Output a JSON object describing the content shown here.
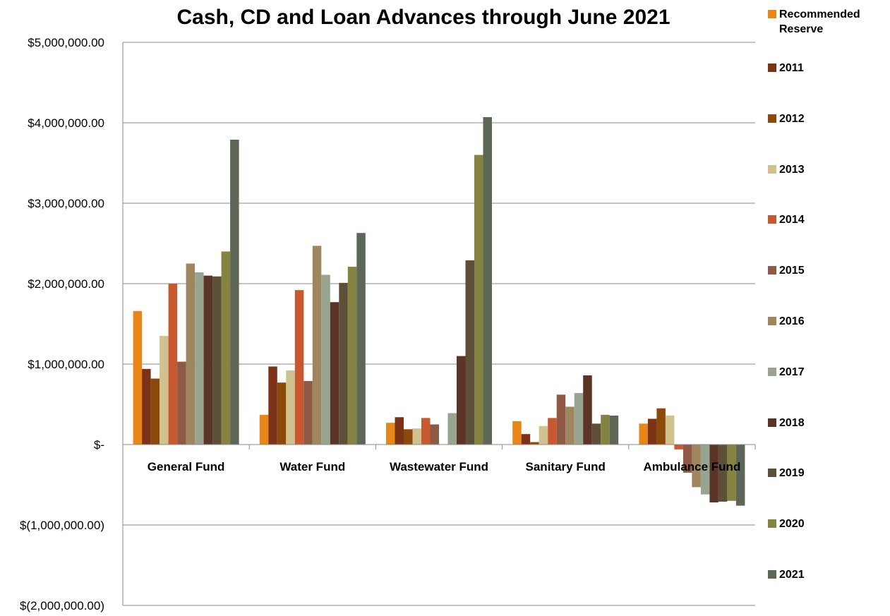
{
  "chart_data": {
    "type": "bar",
    "title": "Cash, CD and Loan Advances through June 2021",
    "xlabel": "",
    "ylabel": "",
    "ylim": [
      -2000000,
      5000000
    ],
    "yticks": [
      {
        "value": 5000000,
        "label": "$5,000,000.00"
      },
      {
        "value": 4000000,
        "label": "$4,000,000.00"
      },
      {
        "value": 3000000,
        "label": "$3,000,000.00"
      },
      {
        "value": 2000000,
        "label": "$2,000,000.00"
      },
      {
        "value": 1000000,
        "label": "$1,000,000.00"
      },
      {
        "value": 0,
        "label": "$-"
      },
      {
        "value": -1000000,
        "label": "$(1,000,000.00)"
      },
      {
        "value": -2000000,
        "label": "$(2,000,000.00)"
      }
    ],
    "grid": true,
    "legend_position": "right",
    "categories": [
      "General Fund",
      "Water Fund",
      "Wastewater Fund",
      "Sanitary Fund",
      "Ambulance Fund"
    ],
    "series": [
      {
        "name": "Recommended Reserve",
        "color": "#E8861A",
        "values": [
          1660000,
          370000,
          270000,
          290000,
          260000
        ]
      },
      {
        "name": "2011",
        "color": "#7B3318",
        "values": [
          940000,
          970000,
          340000,
          130000,
          320000
        ]
      },
      {
        "name": "2012",
        "color": "#8B4A0A",
        "values": [
          820000,
          770000,
          190000,
          30000,
          450000
        ]
      },
      {
        "name": "2013",
        "color": "#CFC28F",
        "values": [
          1350000,
          920000,
          200000,
          230000,
          360000
        ]
      },
      {
        "name": "2014",
        "color": "#C8582F",
        "values": [
          2000000,
          1920000,
          330000,
          330000,
          -60000
        ]
      },
      {
        "name": "2015",
        "color": "#8F5A45",
        "values": [
          1030000,
          790000,
          250000,
          620000,
          -350000
        ]
      },
      {
        "name": "2016",
        "color": "#A0865E",
        "values": [
          2250000,
          2470000,
          0,
          470000,
          -530000
        ]
      },
      {
        "name": "2017",
        "color": "#98A48F",
        "values": [
          2140000,
          2110000,
          390000,
          640000,
          -620000
        ]
      },
      {
        "name": "2018",
        "color": "#5A3427",
        "values": [
          2100000,
          1770000,
          1100000,
          860000,
          -720000
        ]
      },
      {
        "name": "2019",
        "color": "#5E5038",
        "values": [
          2090000,
          2010000,
          2290000,
          260000,
          -710000
        ]
      },
      {
        "name": "2020",
        "color": "#858341",
        "values": [
          2400000,
          2210000,
          3600000,
          370000,
          -700000
        ]
      },
      {
        "name": "2021",
        "color": "#5D6657",
        "values": [
          3790000,
          2630000,
          4070000,
          360000,
          -760000
        ]
      }
    ]
  }
}
